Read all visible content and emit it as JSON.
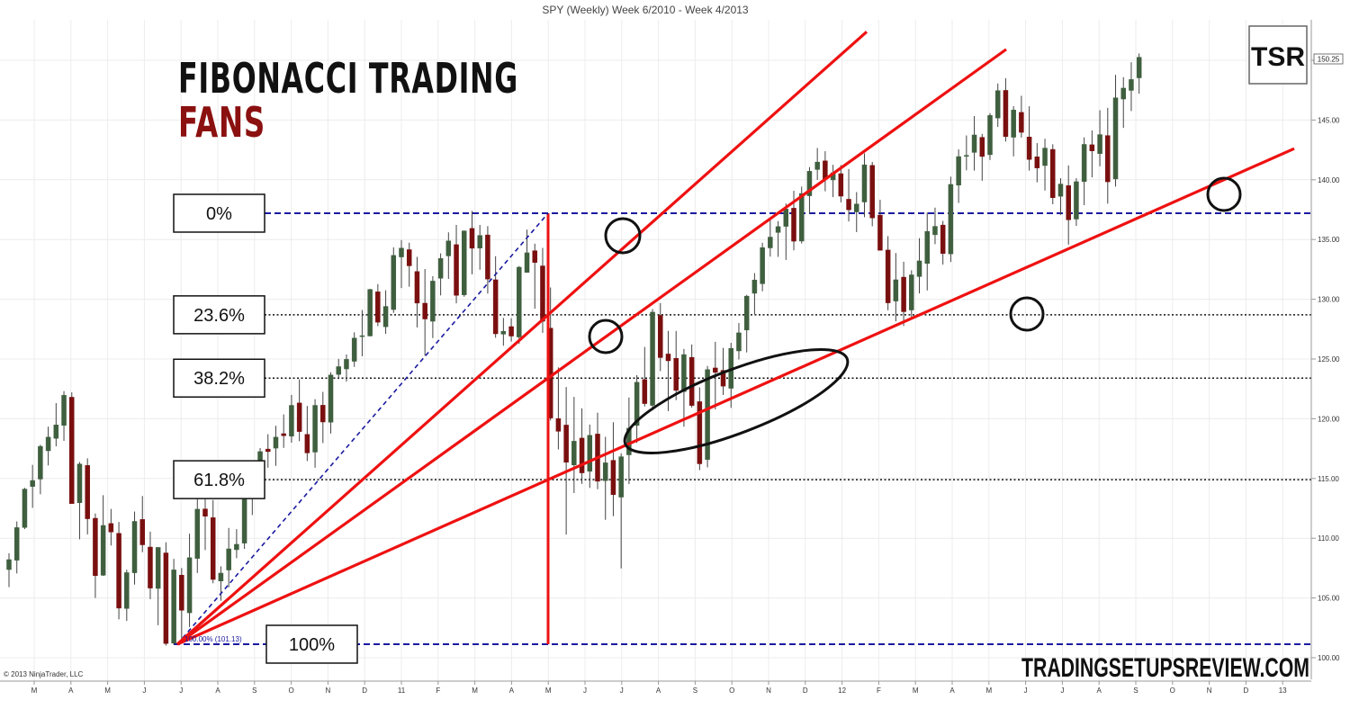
{
  "chart_data": {
    "type": "candlestick",
    "title": "SPY (Weekly)  Week 6/2010 - Week 4/2013",
    "heading_line1": "FIBONACCI TRADING",
    "heading_line2": "FANS",
    "logo": "TSR",
    "website": "TRADINGSETUPSREVIEW.COM",
    "copyright": "© 2013 NinjaTrader, LLC",
    "last_price": "150.25",
    "ylim": [
      99.5,
      153
    ],
    "y_ticks": [
      "100.00",
      "105.00",
      "110.00",
      "115.00",
      "120.00",
      "125.00",
      "130.00",
      "135.00",
      "140.00",
      "145.00",
      "150.00"
    ],
    "x_labels": [
      "M",
      "A",
      "M",
      "J",
      "J",
      "A",
      "S",
      "O",
      "N",
      "D",
      "11",
      "F",
      "M",
      "A",
      "M",
      "J",
      "J",
      "A",
      "S",
      "O",
      "N",
      "D",
      "12",
      "F",
      "M",
      "A",
      "M",
      "J",
      "J",
      "A",
      "S",
      "O",
      "N",
      "D",
      "13"
    ],
    "fib_low": 101.13,
    "fib_high": 137.2,
    "fib_low_marker": "100.00% (101.13)",
    "fib_levels": [
      {
        "label": "0%",
        "value": 137.2,
        "style": "dashed"
      },
      {
        "label": "23.6%",
        "value": 128.7,
        "style": "dotted"
      },
      {
        "label": "38.2%",
        "value": 123.4,
        "style": "dotted"
      },
      {
        "label": "61.8%",
        "value": 114.9,
        "style": "dotted"
      },
      {
        "label": "100%",
        "value": 101.13,
        "style": "dashed"
      }
    ],
    "fan_lines": [
      {
        "level": "23.6%",
        "end_y": 166.6
      },
      {
        "level": "38.2%",
        "end_y": 154.5
      },
      {
        "level": "61.8%",
        "end_y": 141.5
      }
    ],
    "colors": {
      "up": "#3f5f3f",
      "down": "#7a0f0f",
      "fan": "#ee1111",
      "level": "#1a1aa0",
      "heading_accent": "#8b1010"
    },
    "ohlc": [
      [
        107.38,
        108.74,
        105.91,
        108.21
      ],
      [
        108.16,
        111.41,
        107.05,
        110.89
      ],
      [
        110.9,
        114.22,
        110.76,
        114.11
      ],
      [
        114.33,
        116.14,
        112.54,
        114.83
      ],
      [
        114.95,
        117.82,
        113.68,
        117.69
      ],
      [
        117.32,
        119.34,
        116.09,
        118.46
      ],
      [
        118.36,
        121.31,
        117.69,
        119.48
      ],
      [
        119.45,
        122.31,
        118.15,
        121.96
      ],
      [
        121.8,
        122.21,
        112.96,
        112.9
      ],
      [
        112.97,
        116.38,
        109.91,
        116.21
      ],
      [
        116.09,
        116.69,
        110.32,
        111.63
      ],
      [
        111.67,
        112.07,
        105.0,
        106.87
      ],
      [
        106.9,
        113.6,
        106.85,
        111.07
      ],
      [
        111.23,
        112.45,
        109.39,
        110.52
      ],
      [
        110.41,
        111.36,
        103.21,
        104.15
      ],
      [
        104.12,
        107.37,
        103.08,
        107.12
      ],
      [
        107.11,
        112.23,
        106.12,
        111.41
      ],
      [
        111.57,
        113.53,
        108.83,
        109.45
      ],
      [
        109.26,
        110.55,
        104.9,
        105.83
      ],
      [
        105.8,
        109.23,
        102.72,
        109.23
      ],
      [
        108.77,
        109.66,
        101.02,
        101.19
      ],
      [
        101.22,
        108.27,
        101.1,
        107.35
      ],
      [
        106.91,
        107.51,
        101.59,
        103.97
      ],
      [
        103.76,
        110.38,
        102.57,
        108.37
      ],
      [
        108.31,
        113.49,
        107.09,
        112.43
      ],
      [
        112.45,
        113.28,
        109.01,
        111.84
      ],
      [
        111.72,
        113.2,
        106.23,
        106.55
      ],
      [
        106.42,
        107.65,
        104.77,
        107.08
      ],
      [
        107.34,
        110.86,
        105.89,
        109.11
      ],
      [
        109.04,
        110.76,
        108.33,
        109.49
      ],
      [
        109.59,
        114.18,
        109.11,
        114.04
      ],
      [
        113.87,
        115.62,
        111.94,
        114.96
      ],
      [
        114.61,
        117.55,
        114.18,
        117.25
      ],
      [
        117.46,
        118.71,
        115.9,
        117.25
      ],
      [
        117.54,
        119.41,
        116.06,
        118.46
      ],
      [
        118.75,
        120.36,
        117.56,
        118.58
      ],
      [
        118.54,
        121.99,
        118.0,
        121.12
      ],
      [
        121.32,
        123.3,
        118.12,
        118.93
      ],
      [
        118.69,
        121.07,
        116.46,
        117.14
      ],
      [
        117.21,
        121.64,
        115.9,
        121.12
      ],
      [
        121.13,
        122.25,
        117.96,
        119.73
      ],
      [
        119.71,
        123.89,
        118.76,
        123.66
      ],
      [
        123.71,
        125.01,
        123.32,
        124.36
      ],
      [
        124.17,
        125.38,
        123.11,
        124.97
      ],
      [
        124.81,
        127.23,
        124.34,
        126.75
      ],
      [
        126.92,
        129.1,
        125.23,
        126.95
      ],
      [
        126.93,
        130.87,
        126.88,
        130.82
      ],
      [
        130.62,
        131.27,
        127.75,
        128.08
      ],
      [
        127.7,
        130.75,
        127.11,
        129.4
      ],
      [
        129.14,
        134.35,
        128.86,
        133.67
      ],
      [
        133.54,
        134.95,
        130.94,
        134.28
      ],
      [
        134.15,
        134.73,
        131.05,
        132.8
      ],
      [
        132.32,
        133.55,
        127.64,
        129.68
      ],
      [
        129.67,
        132.53,
        125.27,
        128.35
      ],
      [
        128.16,
        131.93,
        126.75,
        131.52
      ],
      [
        131.76,
        133.84,
        130.32,
        133.41
      ],
      [
        133.63,
        135.6,
        131.7,
        134.88
      ],
      [
        134.57,
        136.22,
        129.66,
        130.33
      ],
      [
        130.37,
        135.75,
        130.21,
        135.72
      ],
      [
        135.93,
        137.39,
        132.09,
        134.27
      ],
      [
        134.28,
        136.22,
        132.47,
        135.34
      ],
      [
        135.38,
        136.12,
        130.47,
        131.69
      ],
      [
        131.63,
        133.6,
        126.78,
        127.11
      ],
      [
        127.08,
        128.44,
        126.11,
        127.32
      ],
      [
        127.71,
        128.41,
        126.46,
        126.92
      ],
      [
        126.84,
        132.78,
        126.28,
        132.68
      ],
      [
        132.25,
        135.83,
        132.22,
        133.89
      ],
      [
        134.06,
        134.65,
        129.21,
        133.08
      ],
      [
        132.79,
        134.3,
        127.19,
        128.16
      ],
      [
        127.58,
        130.99,
        119.86,
        120.06
      ],
      [
        120.02,
        124.3,
        117.43,
        118.95
      ],
      [
        119.47,
        122.66,
        110.31,
        116.36
      ],
      [
        116.13,
        121.83,
        113.78,
        118.12
      ],
      [
        118.38,
        120.87,
        114.55,
        115.47
      ],
      [
        115.6,
        119.51,
        114.21,
        118.61
      ],
      [
        118.72,
        120.51,
        114.1,
        114.77
      ],
      [
        114.82,
        118.49,
        111.54,
        116.31
      ],
      [
        116.52,
        119.71,
        111.85,
        113.65
      ],
      [
        113.44,
        117.1,
        107.47,
        116.82
      ],
      [
        116.98,
        121.78,
        114.53,
        119.21
      ],
      [
        119.44,
        123.65,
        117.98,
        123.05
      ],
      [
        123.28,
        126.01,
        121.03,
        121.27
      ],
      [
        121.12,
        129.18,
        120.7,
        128.92
      ],
      [
        128.65,
        129.68,
        123.99,
        125.12
      ],
      [
        125.42,
        127.35,
        120.64,
        124.85
      ],
      [
        125.06,
        127.35,
        121.56,
        122.37
      ],
      [
        122.27,
        125.84,
        119.33,
        125.37
      ],
      [
        125.14,
        126.21,
        120.93,
        121.11
      ],
      [
        121.43,
        122.63,
        115.7,
        116.23
      ],
      [
        116.59,
        124.42,
        115.93,
        124.11
      ],
      [
        124.25,
        126.44,
        120.78,
        123.88
      ],
      [
        124.05,
        125.93,
        121.99,
        122.73
      ],
      [
        122.55,
        126.35,
        120.91,
        125.89
      ],
      [
        125.68,
        128.01,
        124.96,
        127.19
      ],
      [
        127.43,
        130.37,
        125.55,
        130.26
      ],
      [
        130.5,
        132.19,
        128.74,
        131.61
      ],
      [
        131.3,
        134.73,
        130.67,
        134.32
      ],
      [
        134.3,
        136.82,
        133.57,
        135.2
      ],
      [
        135.59,
        136.54,
        133.55,
        136.08
      ],
      [
        136.1,
        138.01,
        133.29,
        137.55
      ],
      [
        137.62,
        139.08,
        134.09,
        134.86
      ],
      [
        134.87,
        139.43,
        134.67,
        138.85
      ],
      [
        138.66,
        141.06,
        137.16,
        140.71
      ],
      [
        140.86,
        142.66,
        139.99,
        141.48
      ],
      [
        141.58,
        142.39,
        139.04,
        140.04
      ],
      [
        139.99,
        141.25,
        138.55,
        140.59
      ],
      [
        140.51,
        141.23,
        138.11,
        138.63
      ],
      [
        138.37,
        140.9,
        136.51,
        137.49
      ],
      [
        137.31,
        138.97,
        135.62,
        137.97
      ],
      [
        138.14,
        142.21,
        136.87,
        141.25
      ],
      [
        141.2,
        141.49,
        136.11,
        136.81
      ],
      [
        137.04,
        138.33,
        134.07,
        134.1
      ],
      [
        134.12,
        135.28,
        129.08,
        129.7
      ],
      [
        129.85,
        133.87,
        128.15,
        131.63
      ],
      [
        131.85,
        133.14,
        127.76,
        128.96
      ],
      [
        129.1,
        132.43,
        128.3,
        132.04
      ],
      [
        131.9,
        135.11,
        130.49,
        133.21
      ],
      [
        133.0,
        137.27,
        130.74,
        135.68
      ],
      [
        135.4,
        137.67,
        134.61,
        136.1
      ],
      [
        136.21,
        136.56,
        132.9,
        133.83
      ],
      [
        133.8,
        140.26,
        133.12,
        139.61
      ],
      [
        139.55,
        142.54,
        138.06,
        141.94
      ],
      [
        141.97,
        143.71,
        140.79,
        142.04
      ],
      [
        142.29,
        145.33,
        140.77,
        143.75
      ],
      [
        143.55,
        143.84,
        139.92,
        141.95
      ],
      [
        142.1,
        145.58,
        141.66,
        145.38
      ],
      [
        145.17,
        148.06,
        144.42,
        147.46
      ],
      [
        147.48,
        148.5,
        143.2,
        143.61
      ],
      [
        143.56,
        146.16,
        141.96,
        145.84
      ],
      [
        145.64,
        147.03,
        143.53,
        143.97
      ],
      [
        143.58,
        146.15,
        140.77,
        141.7
      ],
      [
        141.92,
        143.07,
        139.79,
        140.99
      ],
      [
        141.19,
        143.43,
        139.1,
        142.65
      ],
      [
        142.54,
        142.97,
        137.95,
        138.5
      ],
      [
        138.62,
        140.13,
        137.06,
        139.64
      ],
      [
        139.51,
        141.2,
        134.57,
        136.65
      ],
      [
        136.71,
        140.13,
        136.14,
        139.84
      ],
      [
        139.85,
        143.55,
        137.88,
        142.96
      ],
      [
        142.93,
        144.13,
        140.2,
        142.42
      ],
      [
        142.19,
        145.82,
        141.13,
        143.78
      ],
      [
        143.7,
        146.02,
        138.0,
        139.83
      ],
      [
        140.07,
        148.78,
        139.43,
        146.86
      ],
      [
        146.76,
        148.59,
        144.34,
        147.67
      ],
      [
        147.48,
        149.84,
        145.75,
        148.39
      ],
      [
        148.53,
        150.57,
        147.2,
        150.25
      ]
    ]
  }
}
